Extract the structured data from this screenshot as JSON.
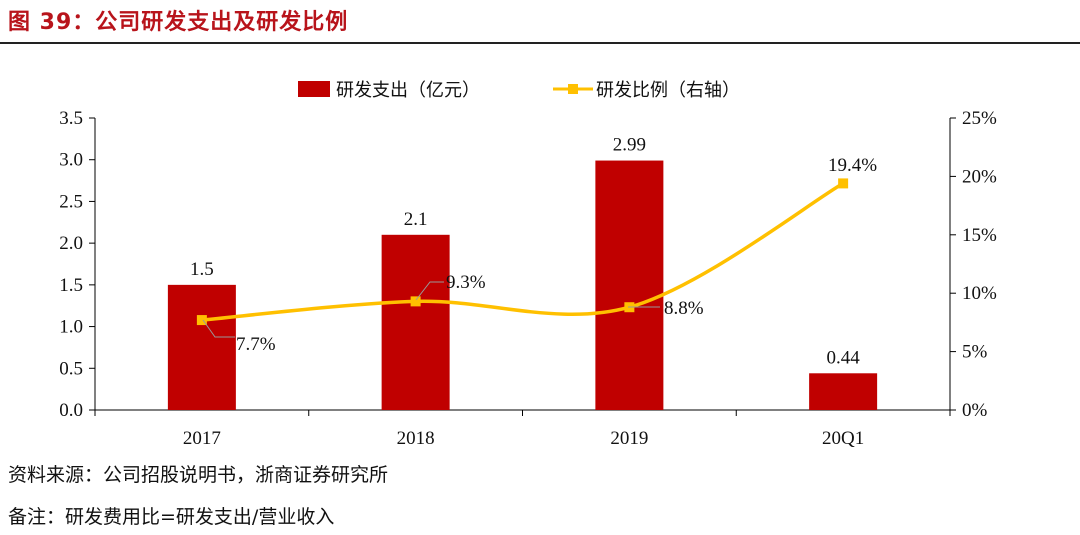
{
  "figure": {
    "title": "图 39：公司研发支出及研发比例",
    "source": "资料来源：公司招股说明书，浙商证券研究所",
    "note": "备注：研发费用比=研发支出/营业收入"
  },
  "colors": {
    "bar": "#c00000",
    "line": "#ffc000",
    "title": "#b8141b"
  },
  "chart_data": {
    "type": "bar",
    "categories": [
      "2017",
      "2018",
      "2019",
      "20Q1"
    ],
    "series": [
      {
        "name": "研发支出（亿元）",
        "type": "bar",
        "axis": "left",
        "values": [
          1.5,
          2.1,
          2.99,
          0.44
        ],
        "labels": [
          "1.5",
          "2.1",
          "2.99",
          "0.44"
        ]
      },
      {
        "name": "研发比例（右轴）",
        "type": "line",
        "axis": "right",
        "values": [
          7.7,
          9.3,
          8.8,
          19.4
        ],
        "labels": [
          "7.7%",
          "9.3%",
          "8.8%",
          "19.4%"
        ]
      }
    ],
    "y_left": {
      "ylim": [
        0,
        3.5
      ],
      "ticks": [
        "0.0",
        "0.5",
        "1.0",
        "1.5",
        "2.0",
        "2.5",
        "3.0",
        "3.5"
      ]
    },
    "y_right": {
      "ylim": [
        0,
        25
      ],
      "ticks": [
        "0%",
        "5%",
        "10%",
        "15%",
        "20%",
        "25%"
      ]
    },
    "legend_position": "top-center",
    "grid": false
  }
}
